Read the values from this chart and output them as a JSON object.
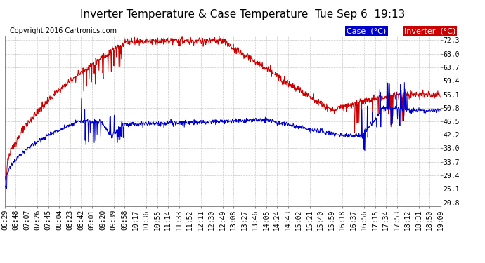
{
  "title": "Inverter Temperature & Case Temperature  Tue Sep 6  19:13",
  "copyright": "Copyright 2016 Cartronics.com",
  "legend_case_label": "Case  (°C)",
  "legend_inverter_label": "Inverter  (°C)",
  "case_color": "#0000cc",
  "inverter_color": "#cc0000",
  "bg_color": "#ffffff",
  "plot_bg_color": "#ffffff",
  "grid_color": "#bbbbbb",
  "yticks": [
    20.8,
    25.1,
    29.4,
    33.7,
    38.0,
    42.2,
    46.5,
    50.8,
    55.1,
    59.4,
    63.7,
    68.0,
    72.3
  ],
  "ylim_min": 19.5,
  "ylim_max": 73.8,
  "xtick_labels": [
    "06:29",
    "06:48",
    "07:07",
    "07:26",
    "07:45",
    "08:04",
    "08:23",
    "08:42",
    "09:01",
    "09:20",
    "09:39",
    "09:58",
    "10:17",
    "10:36",
    "10:55",
    "11:14",
    "11:33",
    "11:52",
    "12:11",
    "12:30",
    "12:49",
    "13:08",
    "13:27",
    "13:46",
    "14:05",
    "14:24",
    "14:43",
    "15:02",
    "15:21",
    "15:40",
    "15:59",
    "16:18",
    "16:37",
    "16:56",
    "17:15",
    "17:34",
    "17:53",
    "18:12",
    "18:31",
    "18:50",
    "19:09"
  ],
  "title_fontsize": 11,
  "copyright_fontsize": 7,
  "tick_fontsize": 7,
  "legend_fontsize": 8
}
